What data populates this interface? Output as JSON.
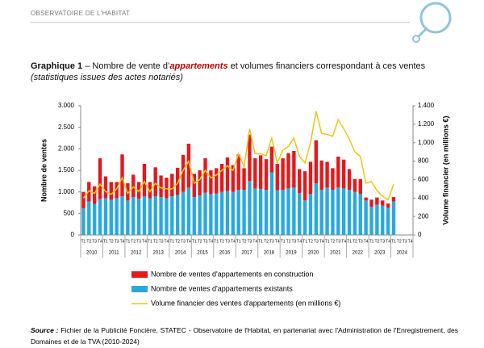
{
  "header": {
    "title": "OBSERVATOIRE DE L'HABITAT"
  },
  "caption": {
    "label": "Graphique 1",
    "parts": [
      "– Nombre de vente d’",
      "appartements",
      " et volumes financiers correspondant à ces ventes"
    ],
    "subtitle": "(statistiques issues des actes notariés)"
  },
  "chart_data": {
    "type": "stacked-bar-line",
    "ylabel": "Nombre de ventes",
    "y2label": "Volume financier (en millions €)",
    "categories": [
      "T1",
      "T2",
      "T3",
      "T4",
      "T1",
      "T2",
      "T3",
      "T4",
      "T1",
      "T2",
      "T3",
      "T4",
      "T1",
      "T2",
      "T3",
      "T4",
      "T1",
      "T2",
      "T3",
      "T4",
      "T1",
      "T2",
      "T3",
      "T4",
      "T1",
      "T2",
      "T3",
      "T4",
      "T1",
      "T2",
      "T3",
      "T4",
      "T1",
      "T2",
      "T3",
      "T4",
      "T1",
      "T2",
      "T3",
      "T4",
      "T1",
      "T2",
      "T3",
      "T4",
      "T1",
      "T2",
      "T3",
      "T4",
      "T1",
      "T2",
      "T3",
      "T4",
      "T1",
      "T2",
      "T3",
      "T4",
      "T1",
      "T2",
      "T3",
      "T4"
    ],
    "groups": [
      "2010",
      "2011",
      "2012",
      "2013",
      "2014",
      "2015",
      "2016",
      "2017",
      "2018",
      "2019",
      "2020",
      "2021",
      "2022",
      "2023",
      "2024"
    ],
    "ylim": [
      0,
      3000
    ],
    "yticks": [
      {
        "value": 0,
        "label": "0"
      },
      500,
      {
        "value": 1000,
        "label": "1.000"
      },
      {
        "value": 1500,
        "label": "1.500"
      },
      {
        "value": 2000,
        "label": "2.000"
      },
      {
        "value": 2500,
        "label": "2.500"
      },
      {
        "value": 3000,
        "label": "3.000"
      }
    ],
    "y2lim": [
      0,
      1400
    ],
    "y2ticks": [
      0,
      200,
      400,
      600,
      800,
      {
        "value": 1000,
        "label": "1.000"
      },
      {
        "value": 1200,
        "label": "1.200"
      },
      {
        "value": 1400,
        "label": "1.400"
      }
    ],
    "series": [
      {
        "name": "Nombre de ventes d'appartements en construction",
        "color": "#e3191c",
        "kind": "bar",
        "stack": 1,
        "values": [
          380,
          450,
          410,
          950,
          510,
          410,
          380,
          970,
          400,
          520,
          390,
          750,
          380,
          670,
          500,
          480,
          520,
          630,
          860,
          1020,
          540,
          580,
          800,
          550,
          590,
          650,
          780,
          620,
          820,
          500,
          1080,
          700,
          780,
          710,
          600,
          610,
          730,
          820,
          850,
          560,
          680,
          750,
          1000,
          680,
          600,
          500,
          720,
          670,
          480,
          300,
          350,
          70,
          170,
          170,
          120,
          100,
          100,
          null,
          null,
          null
        ]
      },
      {
        "name": "Nombre de ventes d'appartements existants",
        "color": "#29a9e0",
        "kind": "bar",
        "stack": 0,
        "values": [
          620,
          780,
          720,
          830,
          850,
          820,
          850,
          900,
          800,
          880,
          840,
          900,
          850,
          900,
          880,
          850,
          900,
          930,
          1000,
          1100,
          880,
          920,
          980,
          950,
          960,
          1000,
          1020,
          1000,
          1050,
          1050,
          1250,
          1080,
          1070,
          1050,
          1450,
          1040,
          1050,
          1080,
          1100,
          970,
          800,
          950,
          1200,
          1050,
          1100,
          1050,
          1100,
          1080,
          1050,
          1000,
          950,
          800,
          650,
          700,
          680,
          630,
          780,
          null,
          null,
          null
        ]
      },
      {
        "name": "Volume financier des ventes d'appartements (en millions €)",
        "color": "#f2c313",
        "kind": "line",
        "axis": "y2",
        "values": [
          400,
          480,
          450,
          550,
          470,
          440,
          500,
          620,
          450,
          520,
          470,
          580,
          470,
          560,
          510,
          500,
          500,
          560,
          700,
          800,
          560,
          600,
          700,
          620,
          650,
          700,
          750,
          700,
          880,
          740,
          1150,
          880,
          880,
          860,
          1050,
          780,
          920,
          960,
          1050,
          850,
          780,
          1000,
          1340,
          1100,
          1090,
          1070,
          1250,
          1150,
          1040,
          900,
          850,
          560,
          580,
          480,
          420,
          380,
          550,
          null,
          null,
          null
        ]
      }
    ]
  },
  "source": {
    "label": "Source :",
    "text": "Fichier de la Publicité Foncière, STATEC - Observatoire de l'Habitat, en partenariat avec l'Administration de l'Enregistrement, des Domaines et de la TVA (2010-2024)"
  }
}
